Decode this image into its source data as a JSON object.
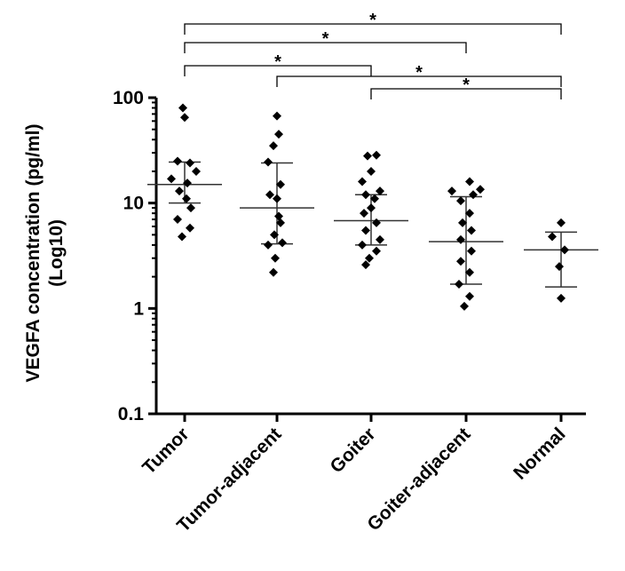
{
  "chart_data": {
    "type": "scatter",
    "title": "",
    "xlabel": "",
    "ylabel_line1": "VEGFA concentration (pg/ml)",
    "ylabel_line2": "(Log10)",
    "yscale": "log",
    "ylim": [
      0.1,
      100
    ],
    "yticks": [
      {
        "value": 0.1,
        "label": "0.1"
      },
      {
        "value": 1,
        "label": "1"
      },
      {
        "value": 10,
        "label": "10"
      },
      {
        "value": 100,
        "label": "100"
      }
    ],
    "categories": [
      "Tumor",
      "Tumor-adjacent",
      "Goiter",
      "Goiter-adjacent",
      "Normal"
    ],
    "groups": [
      {
        "name": "Tumor",
        "median": 15,
        "q1": 10,
        "q3": 24.5,
        "points": [
          {
            "v": 80,
            "j": -2
          },
          {
            "v": 65,
            "j": 0
          },
          {
            "v": 25,
            "j": -8
          },
          {
            "v": 24,
            "j": 6
          },
          {
            "v": 20,
            "j": 13
          },
          {
            "v": 17,
            "j": -15
          },
          {
            "v": 15.5,
            "j": 3
          },
          {
            "v": 13,
            "j": -6
          },
          {
            "v": 11,
            "j": 2
          },
          {
            "v": 9,
            "j": 7
          },
          {
            "v": 7,
            "j": -8
          },
          {
            "v": 5.8,
            "j": 6
          },
          {
            "v": 4.8,
            "j": -3
          }
        ]
      },
      {
        "name": "Tumor-adjacent",
        "median": 9,
        "q1": 4.1,
        "q3": 24,
        "points": [
          {
            "v": 67,
            "j": 0
          },
          {
            "v": 45,
            "j": 2
          },
          {
            "v": 35,
            "j": -4
          },
          {
            "v": 24.5,
            "j": -10
          },
          {
            "v": 15,
            "j": 4
          },
          {
            "v": 12,
            "j": -8
          },
          {
            "v": 11,
            "j": 0
          },
          {
            "v": 7.5,
            "j": 2
          },
          {
            "v": 6.5,
            "j": 4
          },
          {
            "v": 5,
            "j": -3
          },
          {
            "v": 4,
            "j": -10
          },
          {
            "v": 4.2,
            "j": 6
          },
          {
            "v": 3,
            "j": -2
          },
          {
            "v": 2.2,
            "j": -4
          }
        ]
      },
      {
        "name": "Goiter",
        "median": 6.8,
        "q1": 4,
        "q3": 12,
        "points": [
          {
            "v": 28,
            "j": -4
          },
          {
            "v": 28.5,
            "j": 6
          },
          {
            "v": 20,
            "j": 0
          },
          {
            "v": 16,
            "j": -10
          },
          {
            "v": 13,
            "j": 10
          },
          {
            "v": 12,
            "j": -6
          },
          {
            "v": 11,
            "j": 4
          },
          {
            "v": 9,
            "j": 0
          },
          {
            "v": 8,
            "j": -8
          },
          {
            "v": 6.5,
            "j": 6
          },
          {
            "v": 5.5,
            "j": -6
          },
          {
            "v": 4.5,
            "j": 10
          },
          {
            "v": 4,
            "j": -10
          },
          {
            "v": 3.5,
            "j": 6
          },
          {
            "v": 3,
            "j": -2
          },
          {
            "v": 2.6,
            "j": -6
          }
        ]
      },
      {
        "name": "Goiter-adjacent",
        "median": 4.3,
        "q1": 1.7,
        "q3": 11.5,
        "points": [
          {
            "v": 16,
            "j": 4
          },
          {
            "v": 13,
            "j": -16
          },
          {
            "v": 13.5,
            "j": 16
          },
          {
            "v": 12,
            "j": 8
          },
          {
            "v": 10.5,
            "j": -6
          },
          {
            "v": 8,
            "j": 4
          },
          {
            "v": 6.5,
            "j": -4
          },
          {
            "v": 5.5,
            "j": 6
          },
          {
            "v": 4.5,
            "j": -6
          },
          {
            "v": 3.5,
            "j": 6
          },
          {
            "v": 2.8,
            "j": -6
          },
          {
            "v": 2.2,
            "j": 4
          },
          {
            "v": 1.7,
            "j": -8
          },
          {
            "v": 1.3,
            "j": 4
          },
          {
            "v": 1.05,
            "j": -2
          }
        ]
      },
      {
        "name": "Normal",
        "median": 3.6,
        "q1": 1.6,
        "q3": 5.3,
        "points": [
          {
            "v": 6.5,
            "j": 0
          },
          {
            "v": 4.8,
            "j": -10
          },
          {
            "v": 3.6,
            "j": 4
          },
          {
            "v": 2.5,
            "j": -2
          },
          {
            "v": 1.25,
            "j": 0
          }
        ]
      }
    ],
    "significance": [
      {
        "from": 0,
        "to": 4,
        "level": 0,
        "label": "*"
      },
      {
        "from": 0,
        "to": 3,
        "level": 1,
        "label": "*"
      },
      {
        "from": 0,
        "to": 2,
        "level": 3,
        "label": "*"
      },
      {
        "from": 1,
        "to": 4,
        "level": 4,
        "label": "*"
      },
      {
        "from": 2,
        "to": 4,
        "level": 5,
        "label": "*"
      }
    ]
  }
}
